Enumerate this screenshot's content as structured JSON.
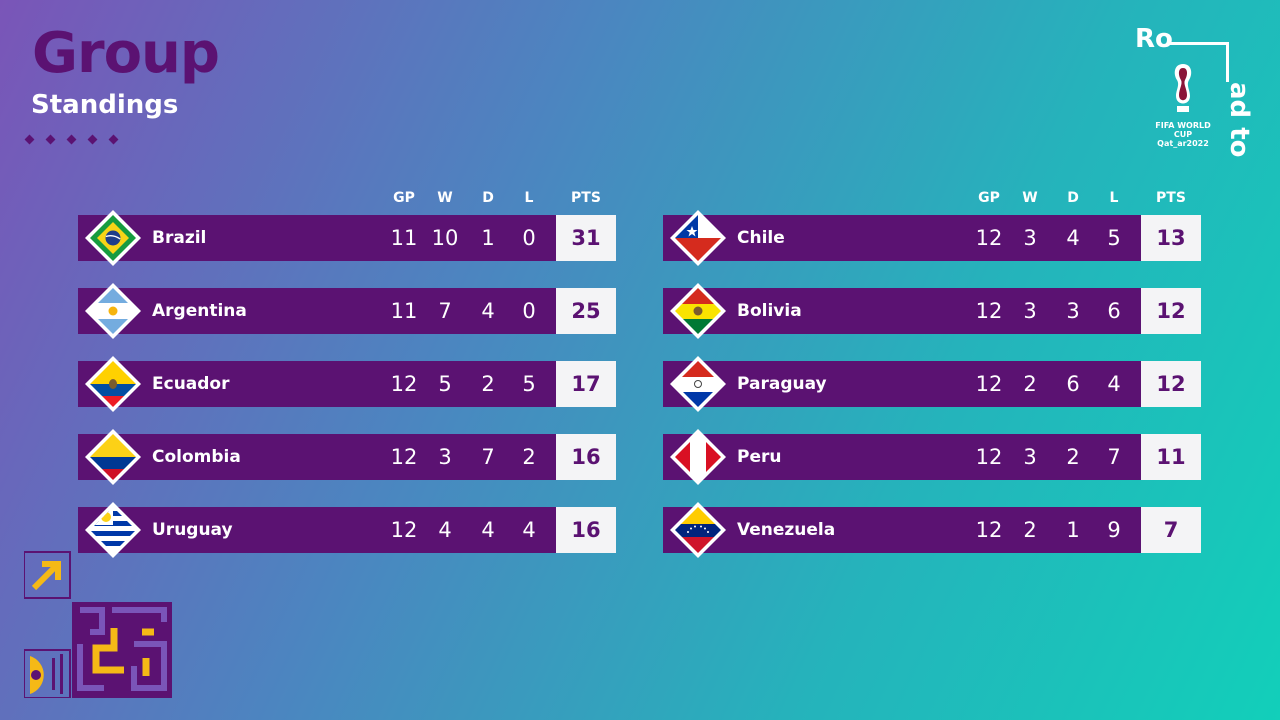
{
  "title": "Group",
  "subtitle": "Standings",
  "logo": {
    "text_top": "Ro",
    "text_side": "ad to",
    "brand_line1": "FIFA WORLD CUP",
    "brand_line2": "Qat_ar2022"
  },
  "columns": {
    "gp": "GP",
    "w": "W",
    "d": "D",
    "l": "L",
    "pts": "PTS"
  },
  "colors": {
    "purple": "#5b1272",
    "white": "#ffffff",
    "gold": "#f5b916"
  },
  "left_table": [
    {
      "team": "Brazil",
      "flag": "brazil-flag",
      "gp": "11",
      "w": "10",
      "d": "1",
      "l": "0",
      "pts": "31"
    },
    {
      "team": "Argentina",
      "flag": "argentina-flag",
      "gp": "11",
      "w": "7",
      "d": "4",
      "l": "0",
      "pts": "25"
    },
    {
      "team": "Ecuador",
      "flag": "ecuador-flag",
      "gp": "12",
      "w": "5",
      "d": "2",
      "l": "5",
      "pts": "17"
    },
    {
      "team": "Colombia",
      "flag": "colombia-flag",
      "gp": "12",
      "w": "3",
      "d": "7",
      "l": "2",
      "pts": "16"
    },
    {
      "team": "Uruguay",
      "flag": "uruguay-flag",
      "gp": "12",
      "w": "4",
      "d": "4",
      "l": "4",
      "pts": "16"
    }
  ],
  "right_table": [
    {
      "team": "Chile",
      "flag": "chile-flag",
      "gp": "12",
      "w": "3",
      "d": "4",
      "l": "5",
      "pts": "13"
    },
    {
      "team": "Bolivia",
      "flag": "bolivia-flag",
      "gp": "12",
      "w": "3",
      "d": "3",
      "l": "6",
      "pts": "12"
    },
    {
      "team": "Paraguay",
      "flag": "paraguay-flag",
      "gp": "12",
      "w": "2",
      "d": "6",
      "l": "4",
      "pts": "12"
    },
    {
      "team": "Peru",
      "flag": "peru-flag",
      "gp": "12",
      "w": "3",
      "d": "2",
      "l": "7",
      "pts": "11"
    },
    {
      "team": "Venezuela",
      "flag": "venezuela-flag",
      "gp": "12",
      "w": "2",
      "d": "1",
      "l": "9",
      "pts": "7"
    }
  ]
}
